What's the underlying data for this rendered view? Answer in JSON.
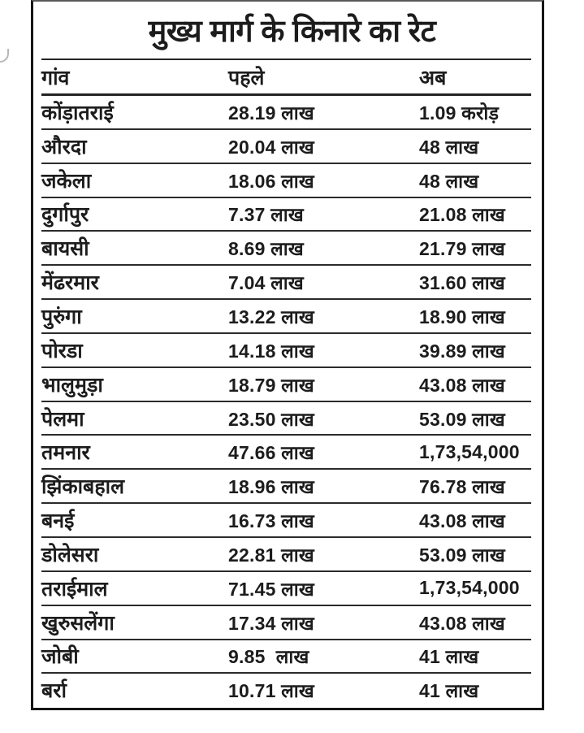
{
  "title": "मुख्य मार्ग के किनारे का रेट",
  "table": {
    "columns": {
      "village": "गांव",
      "before": "पहले",
      "now": "अब"
    },
    "rows": [
      {
        "village": "कोंड़ातराई",
        "before": "28.19 लाख",
        "now": "1.09 करोड़"
      },
      {
        "village": "औरदा",
        "before": "20.04 लाख",
        "now": "48 लाख"
      },
      {
        "village": "जकेला",
        "before": "18.06 लाख",
        "now": "48 लाख"
      },
      {
        "village": "दुर्गापुर",
        "before": "7.37 लाख",
        "now": "21.08 लाख"
      },
      {
        "village": "बायसी",
        "before": "8.69 लाख",
        "now": "21.79 लाख"
      },
      {
        "village": "मेंढरमार",
        "before": "7.04 लाख",
        "now": "31.60 लाख"
      },
      {
        "village": "पुरुंगा",
        "before": "13.22 लाख",
        "now": "18.90 लाख"
      },
      {
        "village": "पोरडा",
        "before": "14.18 लाख",
        "now": "39.89 लाख"
      },
      {
        "village": "भालुमुड़ा",
        "before": "18.79 लाख",
        "now": "43.08 लाख"
      },
      {
        "village": "पेलमा",
        "before": "23.50 लाख",
        "now": "53.09 लाख"
      },
      {
        "village": "तमनार",
        "before": "47.66 लाख",
        "now": "1,73,54,000"
      },
      {
        "village": "झिंकाबहाल",
        "before": "18.96 लाख",
        "now": "76.78 लाख"
      },
      {
        "village": "बनई",
        "before": "16.73 लाख",
        "now": "43.08 लाख"
      },
      {
        "village": "डोलेसरा",
        "before": "22.81 लाख",
        "now": "53.09 लाख"
      },
      {
        "village": "तराईमाल",
        "before": "71.45 लाख",
        "now": "1,73,54,000"
      },
      {
        "village": "खुरुसलेंगा",
        "before": "17.34 लाख",
        "now": "43.08 लाख"
      },
      {
        "village": "जोबी",
        "before": "9.85  लाख",
        "now": "41 लाख"
      },
      {
        "village": "बर्रा",
        "before": "10.71 लाख",
        "now": "41 लाख"
      }
    ]
  }
}
